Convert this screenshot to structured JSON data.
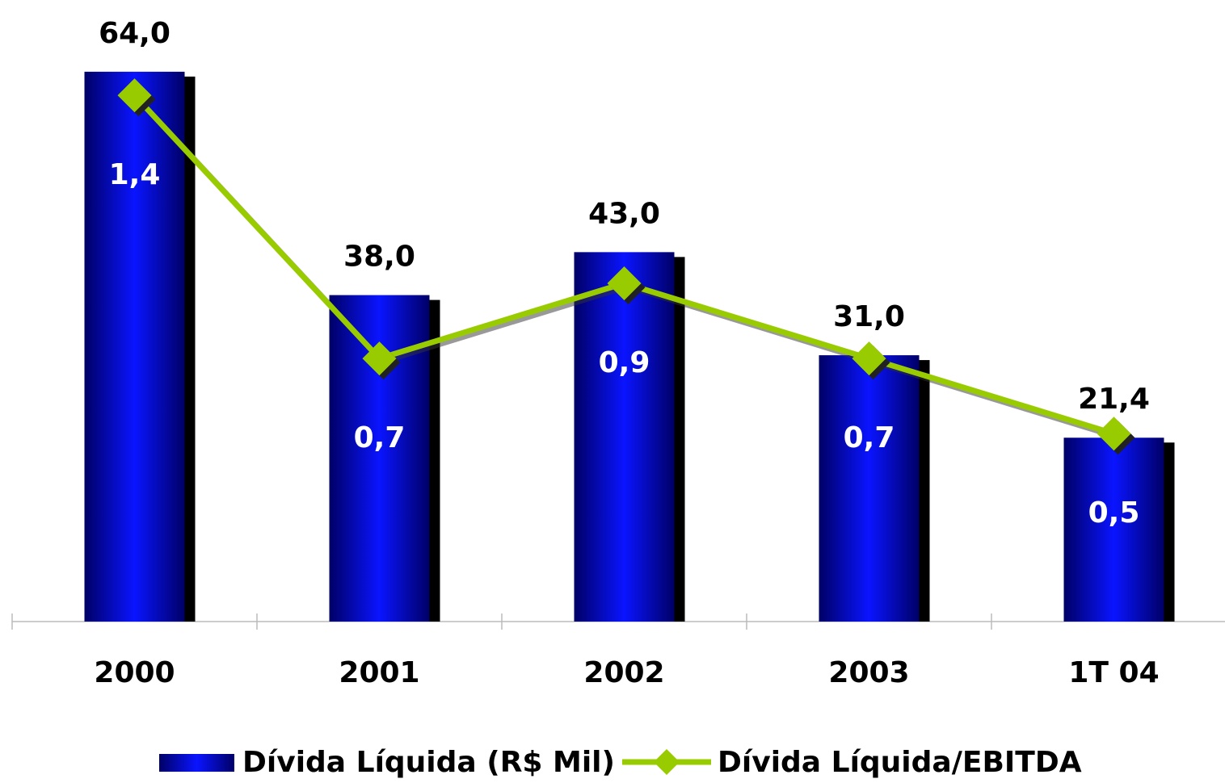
{
  "chart_data": {
    "type": "bar-line",
    "categories": [
      "2000",
      "2001",
      "2002",
      "2003",
      "1T 04"
    ],
    "series": [
      {
        "name": "Dívida Líquida (R$ Mil)",
        "color": "#0a14ff",
        "axis": "y",
        "values": [
          64.0,
          38.0,
          43.0,
          31.0,
          21.4
        ],
        "value_labels": [
          "64,0",
          "38,0",
          "43,0",
          "31,0",
          "21,4"
        ]
      },
      {
        "name": "Dívida Líquida/EBITDA",
        "color": "#99cc00",
        "axis": "y2",
        "values": [
          1.4,
          0.7,
          0.9,
          0.7,
          0.5
        ],
        "value_labels": [
          "1,4",
          "0,7",
          "0,9",
          "0,7",
          "0,5"
        ]
      }
    ],
    "ylim": [
      0,
      70
    ],
    "y2lim": [
      0,
      1.6
    ]
  }
}
